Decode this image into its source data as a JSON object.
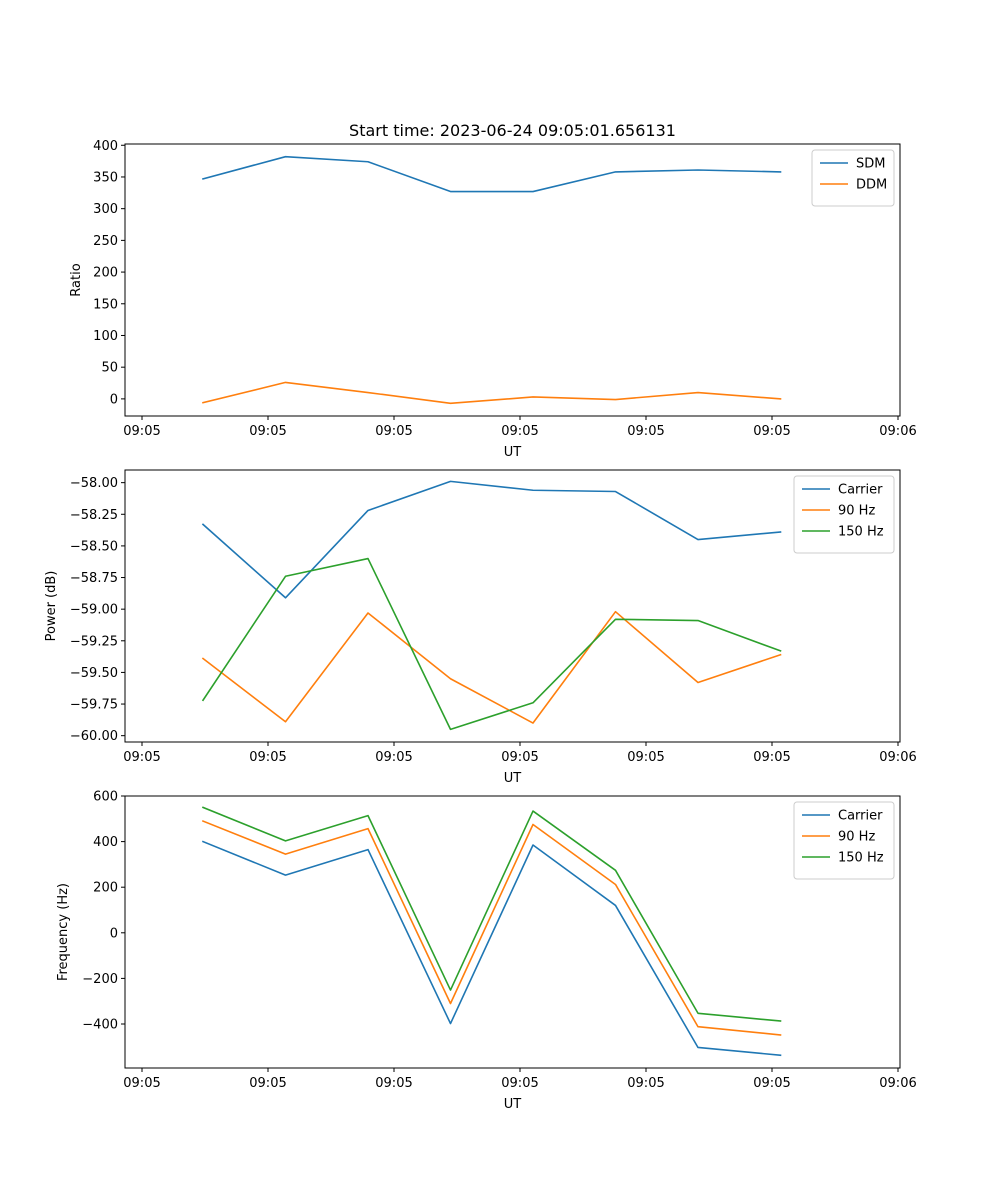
{
  "figure": {
    "title": "Start time: 2023-06-24 09:05:01.656131"
  },
  "chart_data": [
    {
      "type": "line",
      "title": "Start time: 2023-06-24 09:05:01.656131",
      "xlabel": "UT",
      "ylabel": "Ratio",
      "x_tick_labels": [
        "09:05",
        "09:05",
        "09:05",
        "09:05",
        "09:05",
        "09:05",
        "09:06"
      ],
      "y_ticks": [
        0,
        50,
        100,
        150,
        200,
        250,
        300,
        350,
        400
      ],
      "ylim": [
        -27,
        402
      ],
      "legend_position": "top-right",
      "series": [
        {
          "name": "SDM",
          "color": "#1f77b4",
          "values": [
            347,
            382,
            374,
            327,
            327,
            358,
            361,
            358
          ]
        },
        {
          "name": "DDM",
          "color": "#ff7f0e",
          "values": [
            -6,
            26,
            10,
            -7,
            3,
            -1,
            10,
            0
          ]
        }
      ]
    },
    {
      "type": "line",
      "title": "",
      "xlabel": "UT",
      "ylabel": "Power (dB)",
      "x_tick_labels": [
        "09:05",
        "09:05",
        "09:05",
        "09:05",
        "09:05",
        "09:05",
        "09:06"
      ],
      "y_ticks": [
        -60.0,
        -59.75,
        -59.5,
        -59.25,
        -59.0,
        -58.75,
        -58.5,
        -58.25,
        -58.0
      ],
      "y_tick_labels": [
        "−60.00",
        "−59.75",
        "−59.50",
        "−59.25",
        "−59.00",
        "−58.75",
        "−58.50",
        "−58.25",
        "−58.00"
      ],
      "ylim": [
        -60.05,
        -57.9
      ],
      "legend_position": "top-right",
      "series": [
        {
          "name": "Carrier",
          "color": "#1f77b4",
          "values": [
            -58.33,
            -58.91,
            -58.22,
            -57.99,
            -58.06,
            -58.07,
            -58.45,
            -58.39
          ]
        },
        {
          "name": "90 Hz",
          "color": "#ff7f0e",
          "values": [
            -59.39,
            -59.89,
            -59.03,
            -59.55,
            -59.9,
            -59.02,
            -59.58,
            -59.36
          ]
        },
        {
          "name": "150 Hz",
          "color": "#2ca02c",
          "values": [
            -59.72,
            -58.74,
            -58.6,
            -59.95,
            -59.74,
            -59.08,
            -59.09,
            -59.33
          ]
        }
      ]
    },
    {
      "type": "line",
      "title": "",
      "xlabel": "UT",
      "ylabel": "Frequency (Hz)",
      "x_tick_labels": [
        "09:05",
        "09:05",
        "09:05",
        "09:05",
        "09:05",
        "09:05",
        "09:06"
      ],
      "y_ticks": [
        -400,
        -200,
        0,
        200,
        400,
        600
      ],
      "y_tick_labels": [
        "−400",
        "−200",
        "0",
        "200",
        "400",
        "600"
      ],
      "ylim": [
        -593,
        600
      ],
      "legend_position": "top-right",
      "series": [
        {
          "name": "Carrier",
          "color": "#1f77b4",
          "values": [
            400,
            253,
            365,
            -398,
            385,
            120,
            -503,
            -537
          ]
        },
        {
          "name": "90 Hz",
          "color": "#ff7f0e",
          "values": [
            490,
            345,
            457,
            -310,
            475,
            212,
            -412,
            -448
          ]
        },
        {
          "name": "150 Hz",
          "color": "#2ca02c",
          "values": [
            550,
            403,
            514,
            -251,
            534,
            274,
            -353,
            -387
          ]
        }
      ]
    }
  ]
}
